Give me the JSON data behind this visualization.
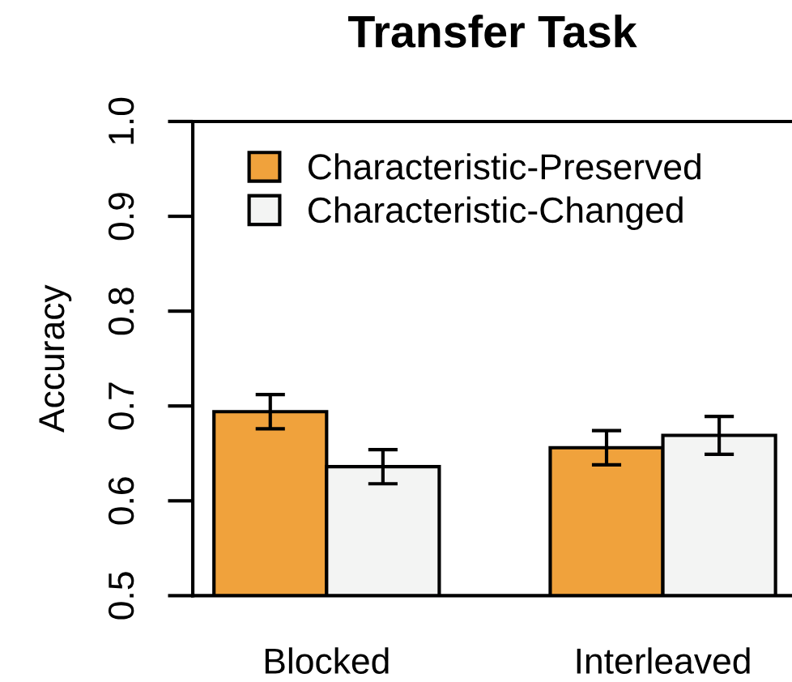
{
  "chart_data": {
    "type": "bar",
    "title": "Transfer Task",
    "ylabel": "Accuracy",
    "categories": [
      "Blocked",
      "Interleaved"
    ],
    "series": [
      {
        "name": "Characteristic-Preserved",
        "color": "#f0a23c",
        "values": [
          0.694,
          0.656
        ],
        "errors": [
          0.018,
          0.018
        ]
      },
      {
        "name": "Characteristic-Changed",
        "color": "#f3f4f3",
        "values": [
          0.636,
          0.669
        ],
        "errors": [
          0.018,
          0.02
        ]
      }
    ],
    "ylim": [
      0.5,
      1.0
    ],
    "yticks": [
      0.5,
      0.6,
      0.7,
      0.8,
      0.9,
      {
        "value": 1,
        "label": "1.0"
      }
    ],
    "grid": false,
    "legend": "top left"
  }
}
